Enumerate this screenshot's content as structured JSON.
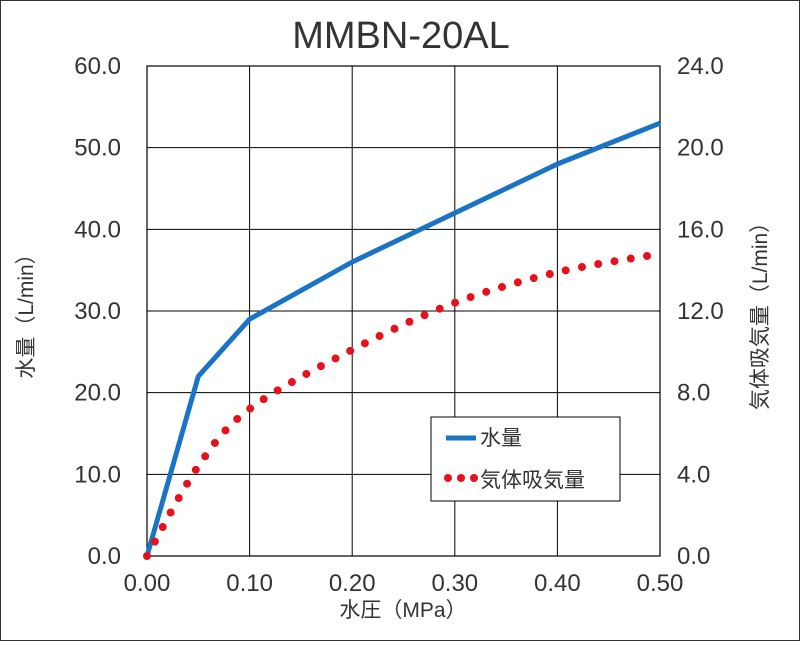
{
  "chart_data": {
    "type": "line",
    "title": "MMBN-20AL",
    "xlabel": "水圧（MPa）",
    "ylabel": "水量（L/min）",
    "y2label": "気体吸気量（L/min）",
    "xlim": [
      0,
      0.5
    ],
    "ylim": [
      0,
      60
    ],
    "y2lim": [
      0,
      24
    ],
    "grid": true,
    "legend_position": "lower-right",
    "x_ticks": [
      "0.00",
      "0.10",
      "0.20",
      "0.30",
      "0.40",
      "0.50"
    ],
    "y_ticks": [
      "0.0",
      "10.0",
      "20.0",
      "30.0",
      "40.0",
      "50.0",
      "60.0"
    ],
    "y2_ticks": [
      "0.0",
      "4.0",
      "8.0",
      "12.0",
      "16.0",
      "20.0",
      "24.0"
    ],
    "series": [
      {
        "name": "水量",
        "axis": "left",
        "style": "solid",
        "color": "#1a73c4",
        "points": [
          [
            0,
            0
          ],
          [
            0.05,
            22
          ],
          [
            0.1,
            29
          ],
          [
            0.2,
            36
          ],
          [
            0.3,
            42
          ],
          [
            0.4,
            48
          ],
          [
            0.5,
            53
          ]
        ]
      },
      {
        "name": "気体吸気量",
        "axis": "right",
        "style": "dotted",
        "color": "#e6111a",
        "points": [
          [
            0,
            0
          ],
          [
            0.05,
            4.4
          ],
          [
            0.1,
            7.2
          ],
          [
            0.2,
            10.1
          ],
          [
            0.3,
            12.4
          ],
          [
            0.4,
            13.9
          ],
          [
            0.5,
            14.8
          ]
        ]
      }
    ]
  }
}
